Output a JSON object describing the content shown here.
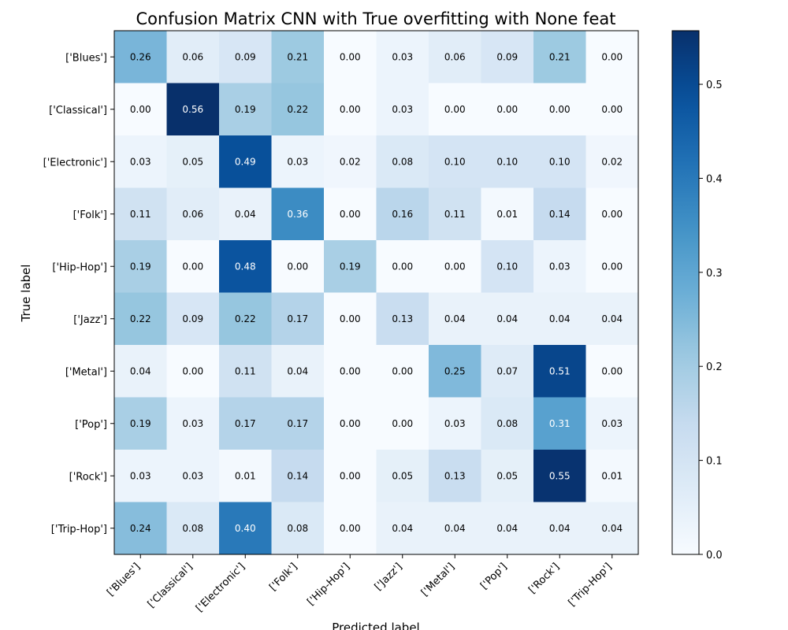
{
  "chart_data": {
    "type": "heatmap",
    "title": "Confusion Matrix CNN with True overfitting with None feat",
    "xlabel": "Predicted label",
    "ylabel": "True label",
    "labels": [
      "['Blues']",
      "['Classical']",
      "['Electronic']",
      "['Folk']",
      "['Hip-Hop']",
      "['Jazz']",
      "['Metal']",
      "['Pop']",
      "['Rock']",
      "['Trip-Hop']"
    ],
    "matrix": [
      [
        0.26,
        0.06,
        0.09,
        0.21,
        0.0,
        0.03,
        0.06,
        0.09,
        0.21,
        0.0
      ],
      [
        0.0,
        0.56,
        0.19,
        0.22,
        0.0,
        0.03,
        0.0,
        0.0,
        0.0,
        0.0
      ],
      [
        0.03,
        0.05,
        0.49,
        0.03,
        0.02,
        0.08,
        0.1,
        0.1,
        0.1,
        0.02
      ],
      [
        0.11,
        0.06,
        0.04,
        0.36,
        0.0,
        0.16,
        0.11,
        0.01,
        0.14,
        0.0
      ],
      [
        0.19,
        0.0,
        0.48,
        0.0,
        0.19,
        0.0,
        0.0,
        0.1,
        0.03,
        0.0
      ],
      [
        0.22,
        0.09,
        0.22,
        0.17,
        0.0,
        0.13,
        0.04,
        0.04,
        0.04,
        0.04
      ],
      [
        0.04,
        0.0,
        0.11,
        0.04,
        0.0,
        0.0,
        0.25,
        0.07,
        0.51,
        0.0
      ],
      [
        0.19,
        0.03,
        0.17,
        0.17,
        0.0,
        0.0,
        0.03,
        0.08,
        0.31,
        0.03
      ],
      [
        0.03,
        0.03,
        0.01,
        0.14,
        0.0,
        0.05,
        0.13,
        0.05,
        0.55,
        0.01
      ],
      [
        0.24,
        0.08,
        0.4,
        0.08,
        0.0,
        0.04,
        0.04,
        0.04,
        0.04,
        0.04
      ]
    ],
    "colormap": "Blues",
    "vmin": 0,
    "vmax": 0.557,
    "colorbar_ticks": [
      "0.0",
      "0.1",
      "0.2",
      "0.3",
      "0.4",
      "0.5"
    ],
    "colorbar_tick_values": [
      0.0,
      0.1,
      0.2,
      0.3,
      0.4,
      0.5
    ],
    "grid": false
  }
}
